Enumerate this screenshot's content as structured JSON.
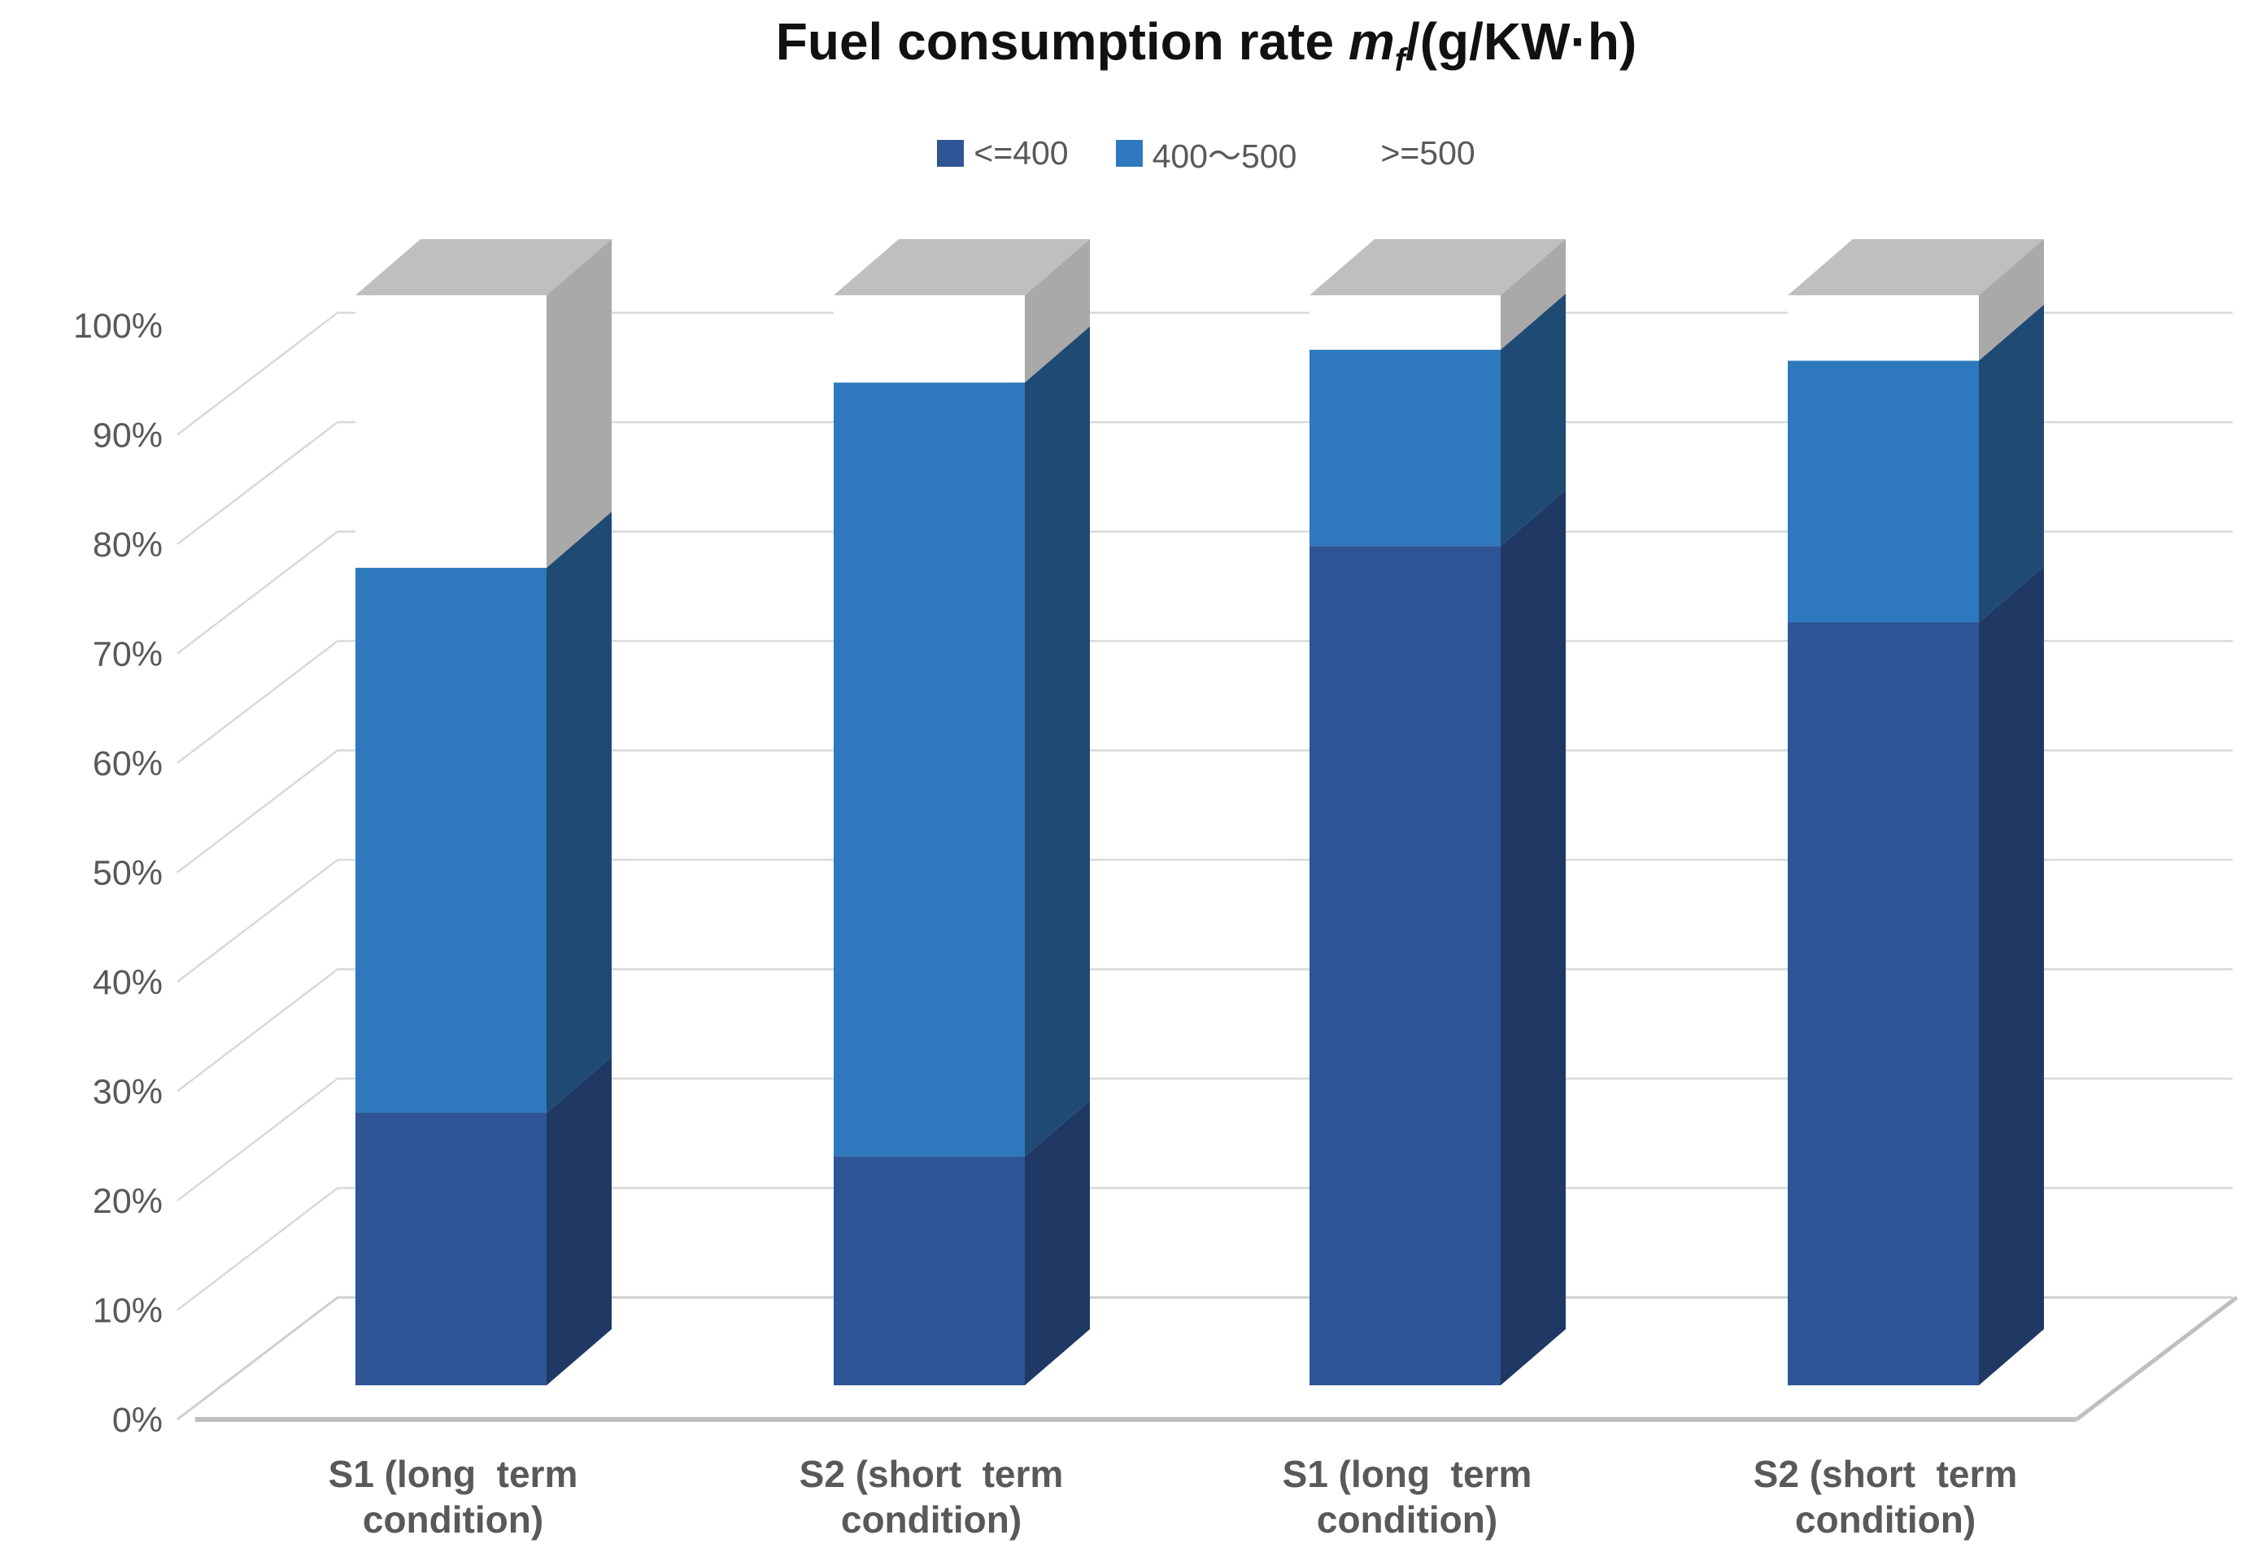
{
  "title": {
    "prefix": "Fuel consumption rate ",
    "math_symbol": "m",
    "math_subscript": "f",
    "suffix": "/(g/KW·h)"
  },
  "legend": {
    "items": [
      {
        "label": "<=400",
        "color": "#2F5597"
      },
      {
        "label": "400～500",
        "color": "#2E78BE"
      },
      {
        "label": ">=500",
        "color": "#FFFFFF"
      }
    ]
  },
  "y_axis": {
    "tick_labels": [
      "0%",
      "10%",
      "20%",
      "30%",
      "40%",
      "50%",
      "60%",
      "70%",
      "80%",
      "90%",
      "100%"
    ]
  },
  "x_axis": {
    "categories": [
      {
        "line1": "S1 (long  term",
        "line2": "condition)"
      },
      {
        "line1": "S2 (short  term",
        "line2": "condition)"
      },
      {
        "line1": "S1 (long  term",
        "line2": "condition)"
      },
      {
        "line1": "S2 (short  term",
        "line2": "condition)"
      }
    ]
  },
  "chart_data": {
    "type": "bar",
    "subtype": "3d-100-percent-stacked-column",
    "title": "Fuel consumption rate mf/(g/KW·h)",
    "categories": [
      "S1 (long term condition)",
      "S2 (short term condition)",
      "S1 (long term condition)",
      "S2 (short term condition)"
    ],
    "series": [
      {
        "name": "<=400",
        "front_color": "#2F5597",
        "side_color": "#1F3864",
        "values": [
          25,
          21,
          77,
          70
        ]
      },
      {
        "name": "400～500",
        "front_color": "#2E78BE",
        "side_color": "#1E4A74",
        "values": [
          50,
          71,
          18,
          24
        ]
      },
      {
        "name": ">=500",
        "front_color": "#FFFFFF",
        "side_color": "#A9A9A9",
        "top_color": "#BFBFBF",
        "values": [
          25,
          8,
          5,
          6
        ]
      }
    ],
    "ylim": [
      0,
      100
    ],
    "y_tick_step": 10,
    "y_format": "percent",
    "grid": true,
    "legend_position": "top",
    "grid_color": "#D9D9D9",
    "floor_edge_color": "#BFBFBF"
  }
}
